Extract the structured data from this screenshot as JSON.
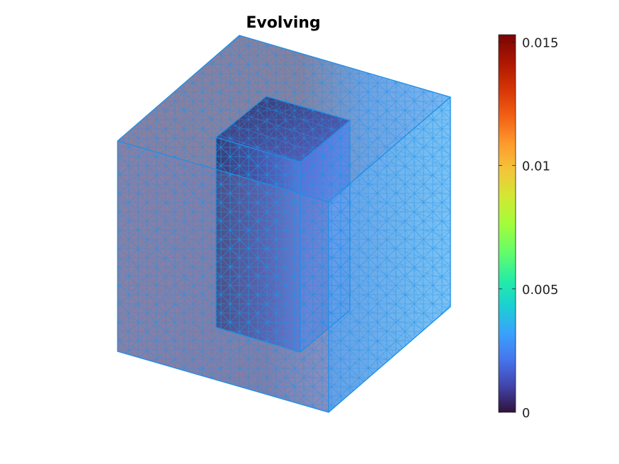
{
  "title": "Evolving",
  "colorbar": {
    "min": 0,
    "max": 0.0153,
    "colormap": "turbo",
    "ticks": [
      {
        "value": 0,
        "label": "0"
      },
      {
        "value": 0.005,
        "label": "0.005"
      },
      {
        "value": 0.01,
        "label": "0.01"
      },
      {
        "value": 0.015,
        "label": "0.015"
      }
    ]
  },
  "mesh": {
    "edge_color": "#1e90e6",
    "outer_block_color": "#7f7fa8",
    "inner_block_color": "#3b4cc0"
  }
}
